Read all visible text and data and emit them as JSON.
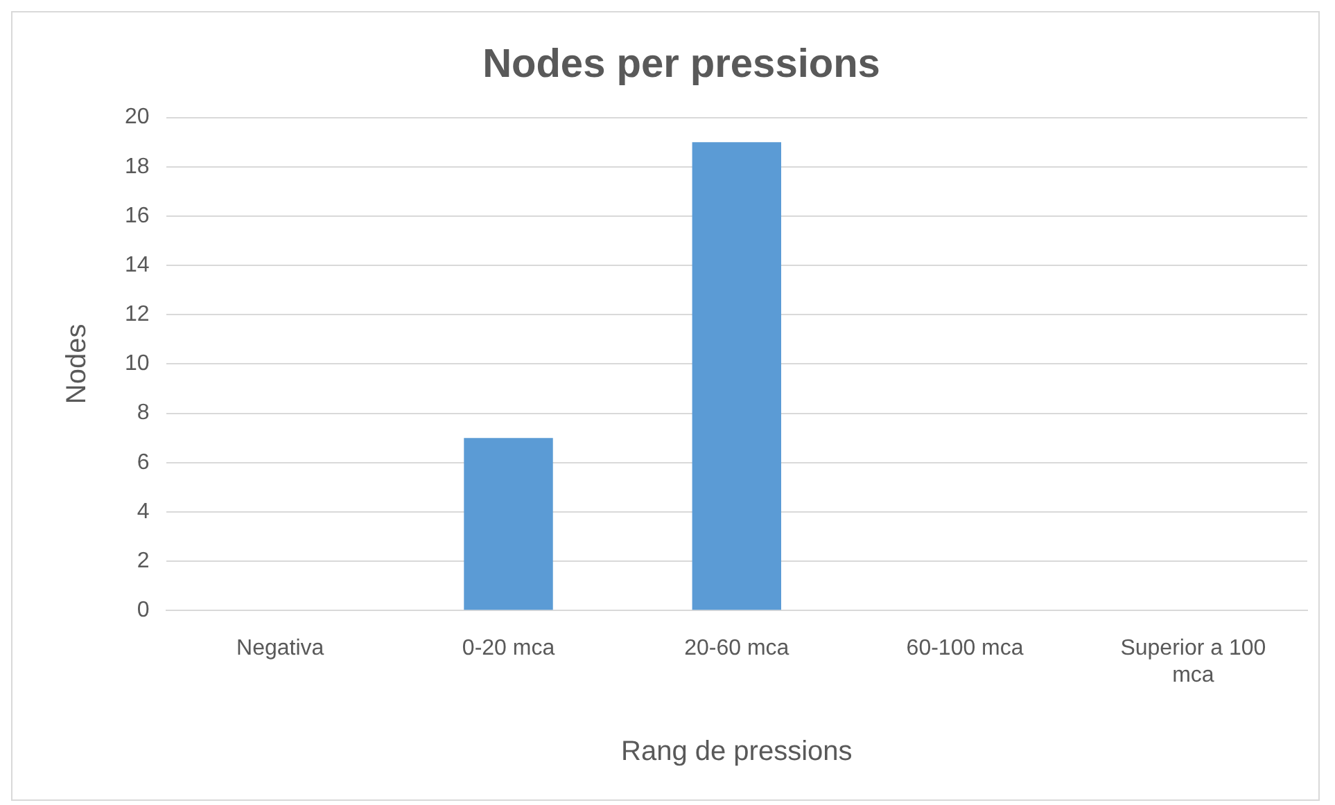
{
  "chart_data": {
    "type": "bar",
    "title": "Nodes per pressions",
    "xlabel": "Rang de pressions",
    "ylabel": "Nodes",
    "categories": [
      "Negativa",
      "0-20 mca",
      "20-60 mca",
      "60-100 mca",
      "Superior a 100 mca"
    ],
    "values": [
      0,
      7,
      19,
      0,
      0
    ],
    "color": "#5b9bd5",
    "ylim": [
      0,
      20
    ],
    "yticks": [
      0,
      2,
      4,
      6,
      8,
      10,
      12,
      14,
      16,
      18,
      20
    ],
    "grid": "y",
    "legend": false
  }
}
